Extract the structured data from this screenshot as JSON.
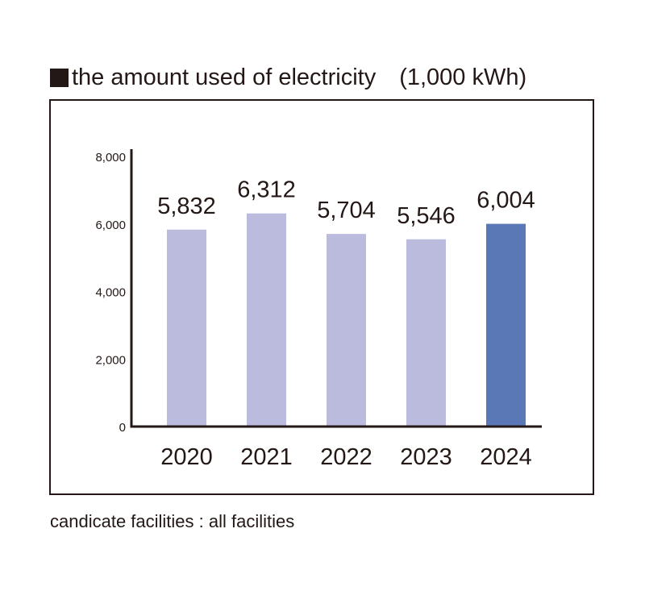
{
  "header": {
    "title": "the amount used of electricity　(1,000 kWh)",
    "title_marker_icon": "black-square-icon"
  },
  "footnote": "candicate facilities : all facilities",
  "colors": {
    "bar_default": "#babbdd",
    "bar_highlight": "#5b78b6",
    "axis": "#231815",
    "text": "#231815"
  },
  "chart_data": {
    "type": "bar",
    "title": "the amount used of electricity (1,000 kWh)",
    "xlabel": "",
    "ylabel": "",
    "categories": [
      "2020",
      "2021",
      "2022",
      "2023",
      "2024"
    ],
    "values": [
      5832,
      6312,
      5704,
      5546,
      6004
    ],
    "value_labels": [
      "5,832",
      "6,312",
      "5,704",
      "5,546",
      "6,004"
    ],
    "highlight_index": 4,
    "ylim": [
      0,
      8000
    ],
    "yticks": [
      0,
      2000,
      4000,
      6000,
      8000
    ],
    "ytick_labels": [
      "0",
      "2,000",
      "4,000",
      "6,000",
      "8,000"
    ],
    "grid": false,
    "legend": "none",
    "units": "1,000 kWh"
  }
}
